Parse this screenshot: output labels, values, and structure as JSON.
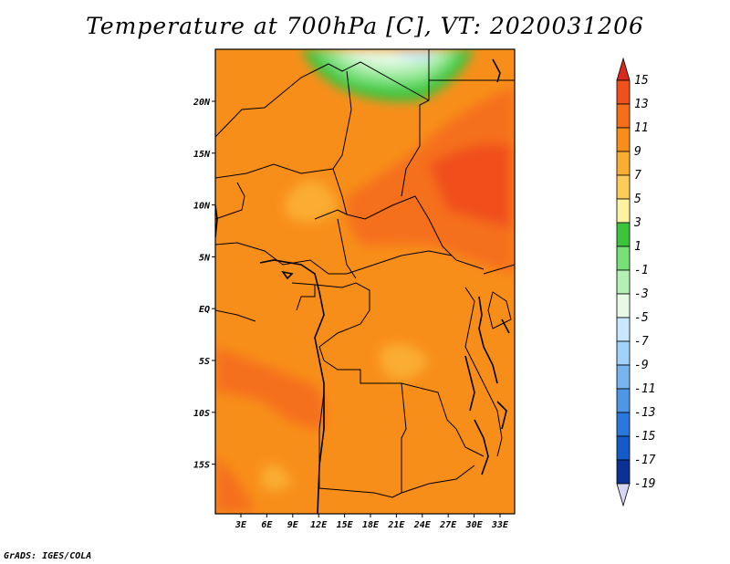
{
  "title": "Temperature at 700hPa [C], VT: 2020031206",
  "credit": "GrADS: IGES/COLA",
  "map": {
    "lon_labels": [
      "3E",
      "6E",
      "9E",
      "12E",
      "15E",
      "18E",
      "21E",
      "24E",
      "27E",
      "30E",
      "33E"
    ],
    "lat_labels": [
      "20N",
      "15N",
      "10N",
      "5N",
      "EQ",
      "5S",
      "10S",
      "15S"
    ]
  },
  "colorbar": {
    "levels": [
      "15",
      "13",
      "11",
      "9",
      "7",
      "5",
      "3",
      "1",
      "-1",
      "-3",
      "-5",
      "-7",
      "-9",
      "-11",
      "-13",
      "-15",
      "-17",
      "-19"
    ],
    "colors": [
      "#e0311e",
      "#f0501a",
      "#f56f1a",
      "#f88e1a",
      "#faad33",
      "#fccb5a",
      "#fdf2a0",
      "#3cc43c",
      "#78e078",
      "#b4f0b4",
      "#e6fae6",
      "#c8e8ff",
      "#a0d2fa",
      "#78b4f0",
      "#5096e6",
      "#2a78dc",
      "#145ac8",
      "#0a3296",
      "#0a0a64"
    ],
    "upper_cap_color": "#d9281c",
    "lower_cap_color": "#d7d7f5"
  }
}
